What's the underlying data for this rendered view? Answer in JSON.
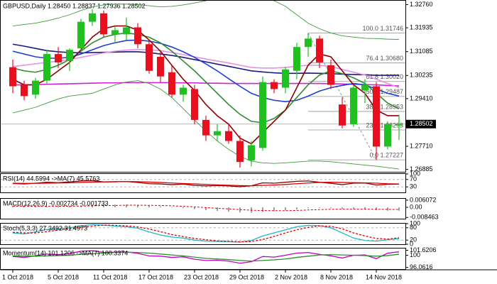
{
  "chart_data": [
    {
      "type": "candlestick",
      "title": "GBPUSD,Daily  1.28450 1.28837 1.27936 1.28502",
      "categories": [
        "1 Oct 2018",
        null,
        null,
        null,
        "5 Oct 2018",
        null,
        null,
        null,
        "11 Oct 2018",
        null,
        null,
        null,
        "17 Oct 2018",
        null,
        null,
        null,
        "23 Oct 2018",
        null,
        null,
        null,
        "29 Oct 2018",
        null,
        null,
        null,
        "2 Nov 2018",
        null,
        null,
        null,
        "8 Nov 2018",
        null,
        null,
        null,
        "14 Nov 2018",
        null,
        null
      ],
      "open": [
        1.3053,
        1.299,
        1.2955,
        1.3005,
        1.31,
        1.3075,
        1.312,
        1.3215,
        1.3245,
        1.317,
        1.317,
        1.3195,
        1.3135,
        1.309,
        1.3035,
        1.2955,
        1.2975,
        1.2865,
        1.281,
        1.2825,
        1.279,
        1.272,
        1.2765,
        1.3,
        1.298,
        1.304,
        1.3125,
        1.3155,
        1.306,
        1.292,
        1.285,
        1.297,
        1.2985,
        1.277,
        1.2845
      ],
      "high": [
        1.308,
        1.3005,
        1.3015,
        1.3115,
        1.3125,
        1.312,
        1.3225,
        1.326,
        1.3255,
        1.32,
        1.323,
        1.321,
        1.315,
        1.311,
        1.306,
        1.299,
        1.299,
        1.288,
        1.285,
        1.285,
        1.281,
        1.279,
        1.302,
        1.301,
        1.3055,
        1.314,
        1.31746,
        1.3165,
        1.308,
        1.2945,
        1.299,
        1.301,
        1.3,
        1.286,
        1.28837
      ],
      "low": [
        1.296,
        1.2935,
        1.294,
        1.299,
        1.305,
        1.304,
        1.311,
        1.32,
        1.316,
        1.314,
        1.315,
        1.312,
        1.303,
        1.3,
        1.2945,
        1.293,
        1.285,
        1.279,
        1.279,
        1.278,
        1.2695,
        1.27,
        1.2755,
        1.296,
        1.296,
        1.301,
        1.309,
        1.305,
        1.2975,
        1.2835,
        1.284,
        1.2925,
        1.27227,
        1.276,
        1.27936
      ],
      "close": [
        1.2985,
        1.295,
        1.3005,
        1.31,
        1.307,
        1.3115,
        1.3215,
        1.3245,
        1.317,
        1.3185,
        1.3195,
        1.3135,
        1.304,
        1.302,
        1.2955,
        1.298,
        1.2865,
        1.281,
        1.2825,
        1.279,
        1.2715,
        1.2775,
        1.3,
        1.2975,
        1.3045,
        1.3125,
        1.3155,
        1.307,
        1.299,
        1.2845,
        1.298,
        1.299,
        1.277,
        1.285,
        1.28502
      ],
      "up_color": "#20c020",
      "down_color": "#e8101f",
      "ylim": [
        1.268,
        1.329
      ],
      "yticks": [
        {
          "value": 1.3276,
          "label": "1.32760"
        },
        1.31935,
        1.31085,
        1.30235,
        {
          "value": 1.2941,
          "label": "1.29410"
        },
        {
          "value": 1.2771,
          "label": "1.27710"
        },
        1.26885
      ],
      "last_price": 1.28502,
      "overlays": [
        {
          "color": "#d41fd4",
          "values": [
            1.299,
            1.299,
            1.2991,
            1.2992,
            1.2993,
            1.2994,
            1.2995,
            1.2996,
            1.2997,
            1.2997,
            1.2998,
            1.2998,
            1.2998,
            1.2998,
            1.2998,
            1.2997,
            1.2997,
            1.2996,
            1.2996,
            1.2995,
            1.2995,
            1.2995,
            1.2995,
            1.2995,
            1.2995,
            1.2995,
            1.2995,
            1.2995,
            1.2994,
            1.2993,
            1.2992,
            1.2991,
            1.299,
            1.2988,
            1.2986
          ]
        },
        {
          "color": "#1a1a80",
          "values": [
            1.3135,
            1.3128,
            1.312,
            1.3112,
            1.3108,
            1.3105,
            1.3104,
            1.3105,
            1.3106,
            1.3107,
            1.3108,
            1.3108,
            1.3105,
            1.31,
            1.3095,
            1.3088,
            1.308,
            1.3072,
            1.3064,
            1.3056,
            1.3048,
            1.304,
            1.3036,
            1.3033,
            1.3031,
            1.3031,
            1.3032,
            1.3031,
            1.303,
            1.3028,
            1.3027,
            1.3026,
            1.3024,
            1.3024,
            1.3024
          ]
        },
        {
          "color": "#e890e0",
          "values": [
            1.3055,
            1.306,
            1.3065,
            1.307,
            1.3075,
            1.308,
            1.3088,
            1.3096,
            1.3104,
            1.311,
            1.3114,
            1.3116,
            1.3115,
            1.3112,
            1.3105,
            1.3098,
            1.309,
            1.3082,
            1.3075,
            1.3068,
            1.306,
            1.3052,
            1.305,
            1.305,
            1.3052,
            1.3056,
            1.306,
            1.306,
            1.3055,
            1.3045,
            1.3035,
            1.3025,
            1.301,
            1.2995,
            1.298
          ]
        },
        {
          "color": "#1f3fd0",
          "values": [
            1.311,
            1.31,
            1.309,
            1.3085,
            1.3085,
            1.3088,
            1.31,
            1.3115,
            1.313,
            1.314,
            1.3148,
            1.315,
            1.3146,
            1.3138,
            1.3125,
            1.3108,
            1.3088,
            1.3065,
            1.304,
            1.3012,
            1.2985,
            1.296,
            1.2945,
            1.2935,
            1.293,
            1.2935,
            1.295,
            1.2968,
            1.298,
            1.2988,
            1.2995,
            1.299,
            1.2975,
            1.296,
            1.295
          ]
        },
        {
          "color": "#2e8b2e",
          "values": [
            1.305,
            1.304,
            1.3035,
            1.3045,
            1.306,
            1.308,
            1.311,
            1.314,
            1.316,
            1.317,
            1.3175,
            1.317,
            1.316,
            1.314,
            1.311,
            1.3075,
            1.304,
            1.3,
            1.296,
            1.292,
            1.2885,
            1.286,
            1.2855,
            1.287,
            1.29,
            1.2945,
            1.299,
            1.3025,
            1.304,
            1.303,
            1.3015,
            1.2995,
            1.296,
            1.2925,
            1.2905
          ]
        },
        {
          "color": "#8b0000",
          "values": [
            1.301,
            1.299,
            1.299,
            1.301,
            1.304,
            1.307,
            1.3115,
            1.316,
            1.319,
            1.32,
            1.32,
            1.3185,
            1.315,
            1.311,
            1.306,
            1.301,
            1.297,
            1.292,
            1.288,
            1.285,
            1.28,
            1.278,
            1.282,
            1.286,
            1.29,
            1.298,
            1.306,
            1.31,
            1.309,
            1.304,
            1.299,
            1.296,
            1.29,
            1.288,
            1.288
          ]
        },
        {
          "color": "#3a9a3a",
          "values": [
            1.32,
            1.3205,
            1.321,
            1.3218,
            1.3228,
            1.324,
            1.3255,
            1.3268,
            1.3275,
            1.3278,
            1.3278,
            1.3276,
            1.3272,
            1.3268,
            1.327,
            1.3275,
            1.3282,
            1.329,
            1.33,
            1.3306,
            1.331,
            1.3308,
            1.33,
            1.329,
            1.327,
            1.324,
            1.321,
            1.319,
            1.3175,
            1.3165,
            1.316,
            1.3156,
            1.3155,
            1.3153,
            1.3152
          ]
        },
        {
          "color": "#3a9a3a",
          "values": [
            1.289,
            1.29,
            1.291,
            1.2925,
            1.294,
            1.295,
            1.2955,
            1.296,
            1.2975,
            1.299,
            1.3,
            1.3005,
            1.2995,
            1.2975,
            1.2945,
            1.2905,
            1.2865,
            1.2825,
            1.279,
            1.276,
            1.2735,
            1.2718,
            1.2712,
            1.271,
            1.2712,
            1.2715,
            1.2718,
            1.2718,
            1.2716,
            1.2712,
            1.2708,
            1.2704,
            1.27,
            1.2695,
            1.269
          ]
        }
      ],
      "fib_levels": [
        {
          "value": 1.31746,
          "label": "100.0 1.31746"
        },
        {
          "value": 1.3068,
          "label": "76.4 1.30680"
        },
        {
          "value": 1.3002,
          "label": "61.8 1.30020"
        },
        {
          "value": 1.29487,
          "label": "50.0 1.29487"
        },
        {
          "value": 1.28953,
          "label": "38.2 1.28953"
        },
        {
          "value": 1.28293,
          "label": "23.6 1.28293"
        },
        {
          "value": 1.27227,
          "label": "0.0 1.27227"
        }
      ]
    },
    {
      "type": "line",
      "title": "RSI(14) 44.5994 ->MA(7) 45.5763",
      "ylim": [
        0,
        100
      ],
      "yticks": [
        100,
        70,
        30
      ],
      "grid": true,
      "series": [
        {
          "color": "#8b0000",
          "values": [
            48,
            46,
            50,
            55,
            53,
            57,
            62,
            64,
            57,
            58,
            59,
            54,
            47,
            46,
            42,
            45,
            38,
            35,
            37,
            35,
            31,
            36,
            52,
            50,
            55,
            60,
            62,
            55,
            49,
            42,
            50,
            51,
            40,
            44,
            44.5994
          ]
        },
        {
          "color": "#e00000",
          "values": [
            50,
            49,
            49,
            50,
            51,
            52,
            54,
            56,
            57,
            58,
            59,
            58,
            56,
            54,
            51,
            48,
            46,
            43,
            41,
            39,
            37,
            36,
            38,
            40,
            43,
            47,
            51,
            54,
            55,
            54,
            53,
            52,
            50,
            47,
            45.5763
          ]
        }
      ]
    },
    {
      "type": "macd",
      "title": "MACD(12,26,9) -0.002734 -0.001733",
      "ylim": [
        -0.0095,
        0.0072
      ],
      "yticks": [
        0.006072,
        {
          "value": 0,
          "label": "0.00"
        },
        -0.008463
      ],
      "histogram_color": "#a0a0a0",
      "histogram": [
        0.0012,
        0.0008,
        0.0006,
        0.0007,
        0.0009,
        0.0012,
        0.0016,
        0.0021,
        0.0022,
        0.0023,
        0.0023,
        0.002,
        0.0014,
        0.0008,
        0.0001,
        -0.0006,
        -0.0015,
        -0.0024,
        -0.003,
        -0.0036,
        -0.0043,
        -0.0045,
        -0.0038,
        -0.0033,
        -0.0026,
        -0.0017,
        -0.0008,
        -0.0005,
        -0.0006,
        -0.0012,
        -0.0013,
        -0.0014,
        -0.0024,
        -0.0028,
        -0.002734
      ],
      "series": [
        {
          "color": "#e00000",
          "dashed": true,
          "values": [
            0.001,
            0.001,
            0.0009,
            0.0009,
            0.0009,
            0.001,
            0.0011,
            0.0013,
            0.0015,
            0.0016,
            0.0018,
            0.0018,
            0.0017,
            0.0016,
            0.0013,
            0.0009,
            0.0004,
            -0.0002,
            -0.0008,
            -0.0013,
            -0.0019,
            -0.0024,
            -0.0027,
            -0.0028,
            -0.0028,
            -0.0026,
            -0.0022,
            -0.0019,
            -0.0016,
            -0.0015,
            -0.0015,
            -0.0015,
            -0.0016,
            -0.0017,
            -0.001733
          ]
        }
      ]
    },
    {
      "type": "line",
      "title": "Stoch(5,3,3) 27.3492 31.4973",
      "ylim": [
        0,
        100
      ],
      "yticks": [
        100,
        80,
        20,
        0
      ],
      "grid": true,
      "series": [
        {
          "color": "#20b8c8",
          "values": [
            55,
            50,
            60,
            72,
            75,
            80,
            90,
            95,
            93,
            88,
            85,
            78,
            60,
            45,
            35,
            30,
            20,
            15,
            14,
            12,
            10,
            18,
            40,
            55,
            70,
            85,
            92,
            90,
            80,
            55,
            30,
            18,
            15,
            22,
            27.3492
          ]
        },
        {
          "color": "#e00000",
          "dashed": true,
          "values": [
            58,
            55,
            55,
            61,
            69,
            76,
            82,
            88,
            93,
            92,
            89,
            84,
            74,
            61,
            47,
            37,
            28,
            22,
            16,
            14,
            12,
            13,
            23,
            38,
            55,
            70,
            82,
            89,
            87,
            75,
            55,
            40,
            28,
            25,
            31.4973
          ]
        }
      ]
    },
    {
      "type": "line",
      "title": "Momentum(14) 101.1206 ->MA(7) 100.3374",
      "ylim": [
        95.5,
        102.2
      ],
      "yticks": [
        101.6206,
        100,
        96.0616
      ],
      "grid": false,
      "series": [
        {
          "color": "#c000c0",
          "values": [
            99.6,
            99.3,
            99.8,
            100.4,
            100.2,
            100.6,
            101.3,
            101.5,
            100.9,
            101.0,
            101.1,
            100.6,
            99.8,
            99.7,
            99.3,
            99.5,
            98.7,
            98.3,
            98.4,
            98.1,
            97.4,
            97.9,
            99.6,
            99.4,
            100.0,
            100.7,
            100.9,
            100.3,
            99.8,
            99.1,
            100.0,
            100.1,
            98.9,
            100.7,
            101.1206
          ]
        },
        {
          "color": "#2e8b2e",
          "values": [
            99.8,
            99.7,
            99.7,
            99.8,
            99.9,
            100.0,
            100.3,
            100.5,
            100.7,
            100.9,
            101.0,
            100.9,
            100.7,
            100.4,
            100.1,
            99.8,
            99.4,
            99.0,
            98.8,
            98.6,
            98.3,
            98.1,
            98.3,
            98.5,
            98.8,
            99.3,
            99.7,
            100.1,
            100.2,
            100.1,
            100.0,
            99.9,
            99.7,
            99.9,
            100.3374
          ]
        }
      ]
    }
  ]
}
